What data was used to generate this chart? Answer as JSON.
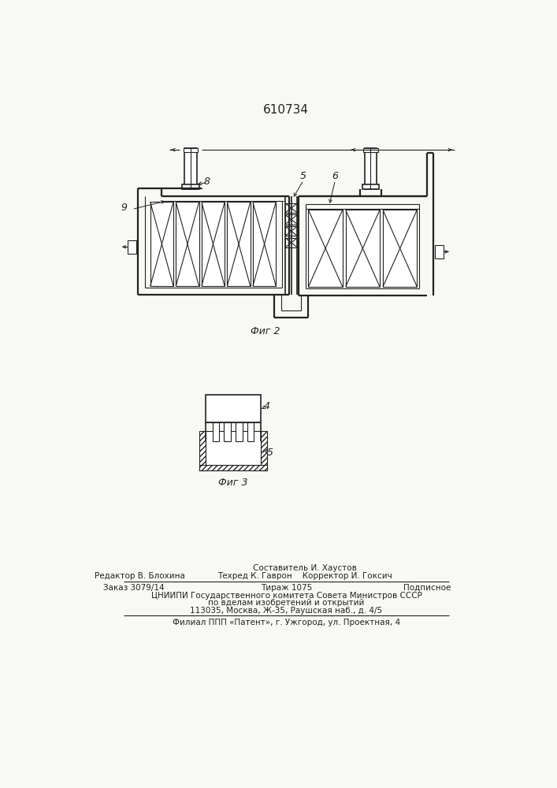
{
  "title": "610734",
  "fig2_label": "Фиг 2",
  "fig3_label": "Фиг 3",
  "bg_color": "#f8f8f5",
  "line_color": "#222222",
  "footer": {
    "line1_left": "Редактор В. Блохина",
    "line1_right_top": "Составитель И. Хаустов",
    "line1_right_bot": "Техред К. Гаврон    Корректор И. Гоксич",
    "line2_left": "Заказ 3079/14",
    "line2_mid": "Тираж 1075",
    "line2_right": "Подписное",
    "line3": "ЦНИИПИ Государственного комитета Совета Министров СССР",
    "line4": "по вделам изобретений и открытий",
    "line5": "113035, Москва, Ж-35, Раушская наб., д. 4/5",
    "line6": "Филиал ППП «Патент», г. Ужгород, ул. Проектная, 4"
  }
}
